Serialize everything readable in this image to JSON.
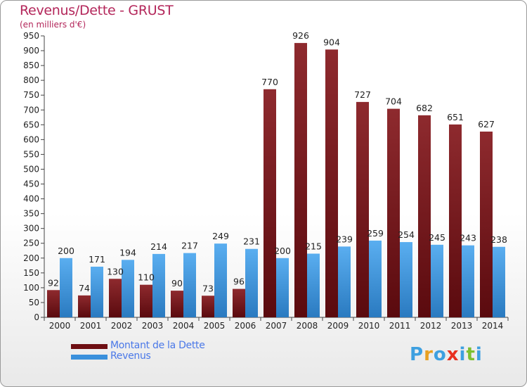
{
  "title": "Revenus/Dette - GRUST",
  "subtitle": "(en milliers d'€)",
  "brand": {
    "text": "Proxiti",
    "letter_colors": [
      "#3ea0e0",
      "#e8a020",
      "#3ea0e0",
      "#e83020",
      "#3ea0e0",
      "#7cc030",
      "#3ea0e0"
    ]
  },
  "colors": {
    "dette": "#7a1a1e",
    "revenus": "#3a90dc",
    "title": "#b3265a",
    "legend_text": "#4a78e8"
  },
  "chart_data": {
    "type": "bar",
    "categories": [
      "2000",
      "2001",
      "2002",
      "2003",
      "2004",
      "2005",
      "2006",
      "2007",
      "2008",
      "2009",
      "2010",
      "2011",
      "2012",
      "2013",
      "2014"
    ],
    "series": [
      {
        "name": "Montant de la Dette",
        "values": [
          92,
          74,
          130,
          110,
          90,
          73,
          96,
          770,
          926,
          904,
          727,
          704,
          682,
          651,
          627
        ]
      },
      {
        "name": "Revenus",
        "values": [
          200,
          171,
          194,
          214,
          217,
          249,
          231,
          200,
          215,
          239,
          259,
          254,
          245,
          243,
          238
        ]
      }
    ],
    "ylim": [
      0,
      950
    ],
    "ytick_step": 50,
    "grid": false,
    "legend_position": "bottom-left"
  }
}
